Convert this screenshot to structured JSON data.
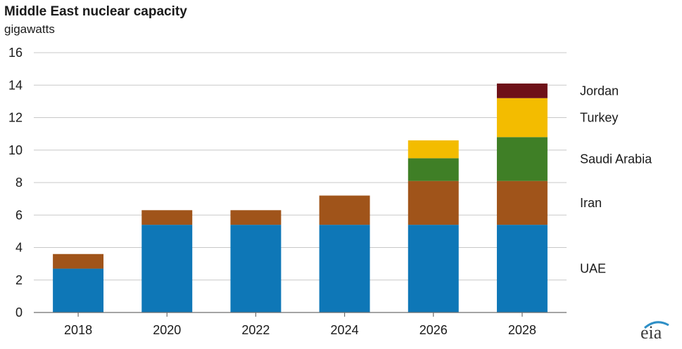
{
  "chart_data": {
    "type": "bar",
    "stacked": true,
    "title": "Middle East nuclear capacity",
    "ylabel": "gigawatts",
    "xlabel": "",
    "categories": [
      "2018",
      "2020",
      "2022",
      "2024",
      "2026",
      "2028"
    ],
    "ylim": [
      0,
      16
    ],
    "yticks": [
      0,
      2,
      4,
      6,
      8,
      10,
      12,
      14,
      16
    ],
    "grid": true,
    "legend_position": "right",
    "series": [
      {
        "name": "UAE",
        "color": "#0e77b7",
        "values": [
          2.7,
          5.4,
          5.4,
          5.4,
          5.4,
          5.4
        ]
      },
      {
        "name": "Iran",
        "color": "#a0541a",
        "values": [
          0.9,
          0.9,
          0.9,
          1.8,
          2.7,
          2.7
        ]
      },
      {
        "name": "Saudi Arabia",
        "color": "#3f7f26",
        "values": [
          0,
          0,
          0,
          0,
          1.4,
          2.7
        ]
      },
      {
        "name": "Turkey",
        "color": "#f3bc00",
        "values": [
          0,
          0,
          0,
          0,
          1.1,
          2.4
        ]
      },
      {
        "name": "Jordan",
        "color": "#6e1118",
        "values": [
          0,
          0,
          0,
          0,
          0,
          0.9
        ]
      }
    ]
  },
  "logo": {
    "text": "eia"
  }
}
